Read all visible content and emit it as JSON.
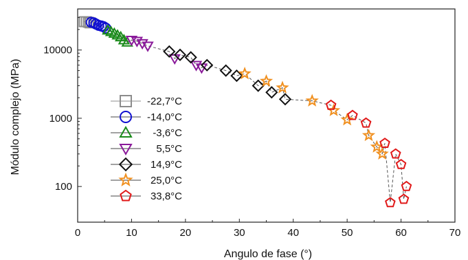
{
  "chart_data": {
    "type": "scatter",
    "xlabel": "Angulo de fase (°)",
    "ylabel": "Módulo complejo (MPa)",
    "xlim": [
      0,
      70
    ],
    "ylim": [
      30,
      40000
    ],
    "yscale": "log",
    "x_ticks": [
      0,
      10,
      20,
      30,
      40,
      50,
      60,
      70
    ],
    "x_tick_labels": [
      "0",
      "10",
      "20",
      "30",
      "40",
      "50",
      "60",
      "70"
    ],
    "y_ticks": [
      100,
      1000,
      10000
    ],
    "y_tick_labels": [
      "100",
      "1000",
      "10000"
    ],
    "grid": false,
    "legend_position": "left",
    "series": [
      {
        "name": "-22,7°C",
        "marker": "square",
        "color": "#8c8c8c",
        "points": [
          [
            1.2,
            26000
          ],
          [
            1.6,
            26000
          ],
          [
            2.0,
            25500
          ],
          [
            2.3,
            25000
          ]
        ]
      },
      {
        "name": "-14,0°C",
        "marker": "circle",
        "color": "#1010d0",
        "points": [
          [
            2.5,
            25500
          ],
          [
            3.0,
            25000
          ],
          [
            3.4,
            24000
          ],
          [
            3.9,
            23000
          ],
          [
            4.4,
            22500
          ],
          [
            4.8,
            22000
          ],
          [
            5.2,
            21000
          ]
        ]
      },
      {
        "name": "-3,6°C",
        "marker": "triangle-up",
        "color": "#1a8a1a",
        "points": [
          [
            5.6,
            19500
          ],
          [
            6.2,
            18500
          ],
          [
            6.8,
            17500
          ],
          [
            7.4,
            16500
          ],
          [
            8.0,
            15500
          ],
          [
            8.6,
            14000
          ],
          [
            9.2,
            13000
          ]
        ]
      },
      {
        "name": "5,5°C",
        "marker": "triangle-down",
        "color": "#8a1a9a",
        "points": [
          [
            10.0,
            14000
          ],
          [
            11.0,
            13500
          ],
          [
            12.0,
            12500
          ],
          [
            13.0,
            11500
          ],
          [
            18.0,
            7500
          ],
          [
            22.0,
            6000
          ],
          [
            23.0,
            5500
          ]
        ]
      },
      {
        "name": "14,9°C",
        "marker": "diamond",
        "color": "#111111",
        "points": [
          [
            17.0,
            9500
          ],
          [
            19.0,
            8500
          ],
          [
            21.0,
            7800
          ],
          [
            24.0,
            6000
          ],
          [
            27.5,
            5000
          ],
          [
            29.5,
            4200
          ],
          [
            33.5,
            3000
          ],
          [
            36.0,
            2400
          ],
          [
            38.5,
            1900
          ]
        ]
      },
      {
        "name": "25,0°C",
        "marker": "star",
        "color": "#f09020",
        "points": [
          [
            31.0,
            4500
          ],
          [
            35.0,
            3500
          ],
          [
            38.0,
            2800
          ],
          [
            43.5,
            1800
          ],
          [
            47.5,
            1300
          ],
          [
            50.0,
            950
          ],
          [
            54.0,
            560
          ],
          [
            55.5,
            380
          ],
          [
            56.5,
            300
          ]
        ]
      },
      {
        "name": "33,8°C",
        "marker": "pentagon",
        "color": "#e01818",
        "points": [
          [
            47.0,
            1550
          ],
          [
            51.0,
            1100
          ],
          [
            53.5,
            850
          ],
          [
            57.0,
            430
          ],
          [
            59.0,
            300
          ],
          [
            60.0,
            210
          ],
          [
            61.0,
            100
          ],
          [
            60.5,
            65
          ],
          [
            58.0,
            58
          ]
        ]
      }
    ]
  }
}
